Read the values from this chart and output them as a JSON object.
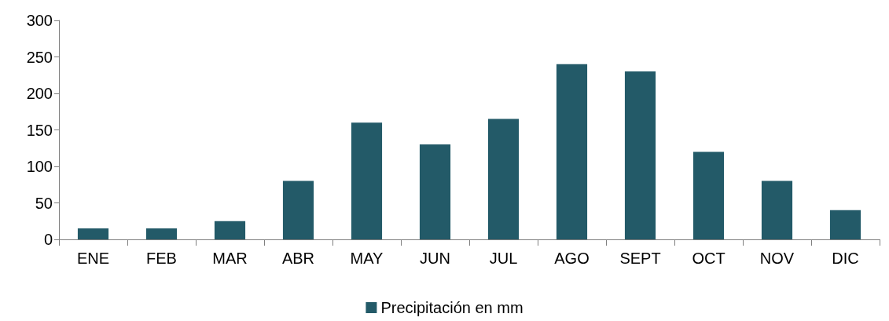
{
  "chart_data": {
    "type": "bar",
    "categories": [
      "ENE",
      "FEB",
      "MAR",
      "ABR",
      "MAY",
      "JUN",
      "JUL",
      "AGO",
      "SEPT",
      "OCT",
      "NOV",
      "DIC"
    ],
    "series": [
      {
        "name": "Precipitación en mm",
        "color": "#235a68",
        "values": [
          15,
          15,
          25,
          80,
          160,
          130,
          165,
          240,
          230,
          120,
          80,
          40
        ]
      }
    ],
    "ylim": [
      0,
      300
    ],
    "yticks": [
      0,
      50,
      100,
      150,
      200,
      250,
      300
    ],
    "grid": false,
    "legend": "bottom"
  }
}
